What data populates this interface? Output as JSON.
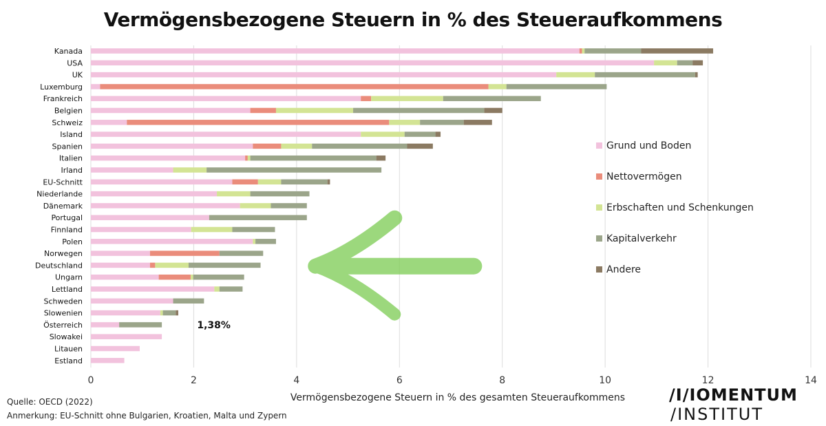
{
  "chart_data": {
    "type": "bar",
    "orientation": "horizontal",
    "stacked": true,
    "title": "Vermögensbezogene Steuern in % des Steueraufkommens",
    "xlabel": "Vermögensbezogene Steuern in % des gesamten Steueraufkommens",
    "ylabel": "",
    "xlim": [
      0,
      14
    ],
    "xticks": [
      0,
      2,
      4,
      6,
      8,
      10,
      12,
      14
    ],
    "grid": "vertical",
    "legend_position": "right",
    "categories": [
      "Kanada",
      "USA",
      "UK",
      "Luxemburg",
      "Frankreich",
      "Belgien",
      "Schweiz",
      "Island",
      "Spanien",
      "Italien",
      "Irland",
      "EU-Schnitt",
      "Niederlande",
      "Dänemark",
      "Portugal",
      "Finnland",
      "Polen",
      "Norwegen",
      "Deutschland",
      "Ungarn",
      "Lettland",
      "Schweden",
      "Slowenien",
      "Österreich",
      "Slowakei",
      "Litauen",
      "Estland"
    ],
    "series": [
      {
        "name": "Grund und Boden",
        "color": "#f2c2dd",
        "values": [
          9.5,
          10.95,
          9.05,
          0.18,
          5.25,
          3.1,
          0.7,
          5.25,
          3.15,
          3.0,
          1.6,
          2.75,
          2.45,
          2.9,
          2.3,
          1.95,
          3.15,
          1.15,
          1.15,
          1.32,
          2.4,
          1.6,
          1.35,
          0.55,
          1.38,
          0.95,
          0.65
        ]
      },
      {
        "name": "Nettovermögen",
        "color": "#ea8c7b",
        "values": [
          0.05,
          0,
          0,
          7.55,
          0.2,
          0.5,
          5.1,
          0,
          0.55,
          0.05,
          0,
          0.5,
          0,
          0,
          0,
          0,
          0,
          1.35,
          0.1,
          0.62,
          0,
          0,
          0,
          0,
          0,
          0,
          0
        ]
      },
      {
        "name": "Erbschaften und Schenkungen",
        "color": "#d3e494",
        "values": [
          0.05,
          0.45,
          0.75,
          0.35,
          1.4,
          1.5,
          0.6,
          0.85,
          0.6,
          0.05,
          0.65,
          0.45,
          0.65,
          0.6,
          0,
          0.8,
          0.05,
          0,
          0.65,
          0.05,
          0.1,
          0,
          0.05,
          0,
          0,
          0,
          0
        ]
      },
      {
        "name": "Kapitalverkehr",
        "color": "#9ba58a",
        "values": [
          1.1,
          0.3,
          1.95,
          1.95,
          1.9,
          2.55,
          0.85,
          0.6,
          1.85,
          2.45,
          3.4,
          0.9,
          1.15,
          0.7,
          1.9,
          0.83,
          0.4,
          0.85,
          1.4,
          0.99,
          0.45,
          0.6,
          0.25,
          0.83,
          0,
          0,
          0
        ]
      },
      {
        "name": "Andere",
        "color": "#8b7a62",
        "values": [
          1.4,
          0.2,
          0.05,
          0,
          0,
          0.35,
          0.55,
          0.1,
          0.5,
          0.18,
          0,
          0.05,
          0,
          0,
          0,
          0,
          0,
          0,
          0,
          0,
          0,
          0,
          0.05,
          0,
          0,
          0,
          0
        ]
      }
    ],
    "annotations": [
      {
        "text": "1,38%",
        "category": "Österreich",
        "x": 2.2
      }
    ],
    "arrow": {
      "from_x": 7.5,
      "to_x": 4.3,
      "category": "Ungarn",
      "color": "#7ccc52"
    }
  },
  "footer": {
    "source": "Quelle: OECD (2022)",
    "note": "Anmerkung: EU-Schnitt ohne Bulgarien, Kroatien, Malta und Zypern"
  },
  "logo": {
    "line1": "/I/IOMENTUM",
    "line2": "/INSTITUT"
  }
}
